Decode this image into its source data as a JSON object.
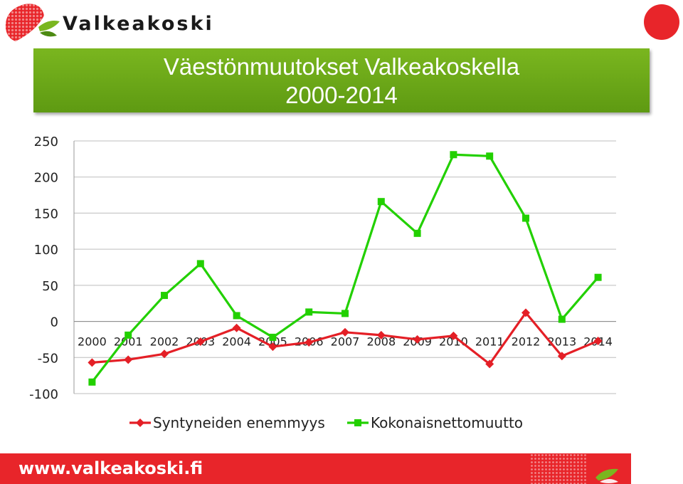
{
  "brand": {
    "name": "Valkeakoski",
    "website": "www.valkeakoski.fi"
  },
  "colors": {
    "title_bg": "#6aa818",
    "footer_bg": "#e8252a",
    "series_red": "#e41f26",
    "series_green": "#22d000"
  },
  "chart_data": {
    "type": "line",
    "title_line1": "Väestönmuutokset Valkeakoskella",
    "title_line2": "2000-2014",
    "categories": [
      "2000",
      "2001",
      "2002",
      "2003",
      "2004",
      "2005",
      "2006",
      "2007",
      "2008",
      "2009",
      "2010",
      "2011",
      "2012",
      "2013",
      "2014"
    ],
    "ylim": [
      -100,
      250
    ],
    "yticks": [
      250,
      200,
      150,
      100,
      50,
      0,
      -50,
      -100
    ],
    "grid": true,
    "legend": "bottom",
    "series": [
      {
        "name": "Syntyneiden enemmyys",
        "color": "#e41f26",
        "marker": "diamond",
        "values": [
          -57,
          -53,
          -45,
          -28,
          -9,
          -35,
          -29,
          -15,
          -19,
          -25,
          -20,
          -59,
          12,
          -48,
          -27
        ]
      },
      {
        "name": "Kokonaisnettomuutto",
        "color": "#22d000",
        "marker": "square",
        "values": [
          -84,
          -19,
          36,
          80,
          8,
          -22,
          13,
          11,
          166,
          122,
          231,
          229,
          143,
          3,
          61
        ]
      }
    ]
  }
}
